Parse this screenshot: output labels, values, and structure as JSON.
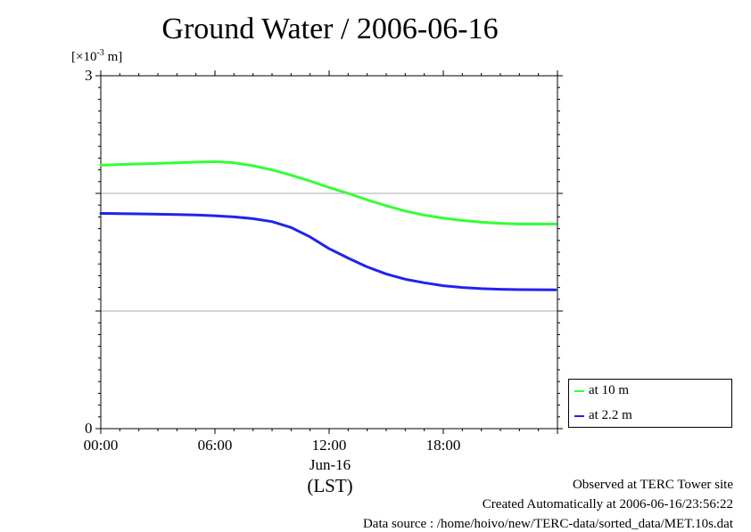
{
  "chart_data": {
    "type": "line",
    "title": "Ground Water / 2006-06-16",
    "ylabel_unit": "[×10-3 m]",
    "ylabel_base": "[×10",
    "ylabel_exp": "-3",
    "ylabel_tail": " m]",
    "ylim": [
      0,
      3
    ],
    "yticks": [
      "0",
      "3"
    ],
    "ygrid": [
      1,
      2
    ],
    "xlim": [
      0,
      24
    ],
    "xticks": [
      {
        "value": 0,
        "label": "00:00"
      },
      {
        "value": 6,
        "label": "06:00"
      },
      {
        "value": 12,
        "label": "12:00"
      },
      {
        "value": 18,
        "label": "18:00"
      }
    ],
    "xdate_label": "Jun-16",
    "xtimezone_label": "(LST)",
    "series": [
      {
        "name": "at 10 m",
        "color": "#33ff33",
        "x": [
          0,
          1,
          2,
          3,
          4,
          5,
          6,
          7,
          8,
          9,
          10,
          11,
          12,
          13,
          14,
          15,
          16,
          17,
          18,
          19,
          20,
          21,
          22,
          23.9
        ],
        "y": [
          2.24,
          2.245,
          2.25,
          2.255,
          2.26,
          2.265,
          2.27,
          2.26,
          2.235,
          2.2,
          2.155,
          2.105,
          2.05,
          2.0,
          1.945,
          1.895,
          1.85,
          1.815,
          1.79,
          1.77,
          1.755,
          1.745,
          1.74,
          1.74
        ]
      },
      {
        "name": "at 2.2 m",
        "color": "#2222ee",
        "x": [
          0,
          1,
          2,
          3,
          4,
          5,
          6,
          7,
          8,
          9,
          10,
          11,
          12,
          13,
          14,
          15,
          16,
          17,
          18,
          19,
          20,
          21,
          22,
          23.9
        ],
        "y": [
          1.83,
          1.828,
          1.826,
          1.823,
          1.82,
          1.816,
          1.81,
          1.8,
          1.785,
          1.76,
          1.71,
          1.63,
          1.53,
          1.45,
          1.375,
          1.315,
          1.27,
          1.24,
          1.215,
          1.2,
          1.19,
          1.185,
          1.182,
          1.18
        ]
      }
    ],
    "legend_position": "bottom-right outside"
  },
  "footer": {
    "observed": "Observed at TERC Tower site",
    "created": "Created Automatically at 2006-06-16/23:56:22",
    "source": "Data source : /home/hoivo/new/TERC-data/sorted_data/MET.10s.dat"
  }
}
